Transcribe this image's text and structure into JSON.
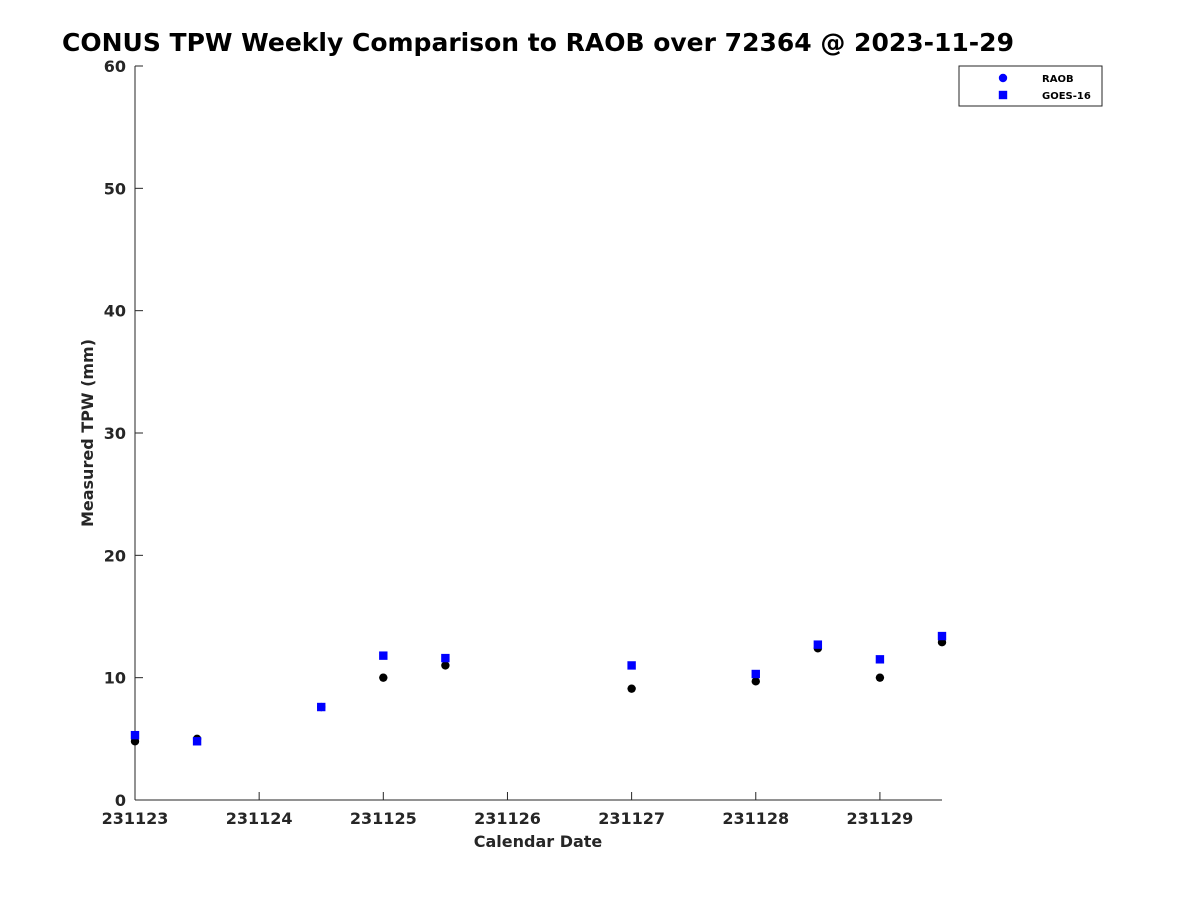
{
  "chart_data": {
    "type": "scatter",
    "title": "CONUS TPW Weekly Comparison to RAOB over 72364 @ 2023-11-29",
    "xlabel": "Calendar Date",
    "ylabel": "Measured TPW (mm)",
    "xlim": [
      "2023-11-23T00:00",
      "2023-11-29T12:00"
    ],
    "ylim": [
      0,
      60
    ],
    "x_ticks": [
      {
        "x": "2023-11-23T00:00",
        "label": "231123"
      },
      {
        "x": "2023-11-24T00:00",
        "label": "231124"
      },
      {
        "x": "2023-11-25T00:00",
        "label": "231125"
      },
      {
        "x": "2023-11-26T00:00",
        "label": "231126"
      },
      {
        "x": "2023-11-27T00:00",
        "label": "231127"
      },
      {
        "x": "2023-11-28T00:00",
        "label": "231128"
      },
      {
        "x": "2023-11-29T00:00",
        "label": "231129"
      }
    ],
    "y_ticks": [
      0,
      10,
      20,
      30,
      40,
      50,
      60
    ],
    "grid": false,
    "legend_position": "top-right",
    "series": [
      {
        "name": "RAOB",
        "marker": "circle",
        "marker_color": "#000000",
        "legend_color": "#0000ff",
        "points": [
          {
            "x": "2023-11-23T00:00",
            "y": 4.8
          },
          {
            "x": "2023-11-23T12:00",
            "y": 5.0
          },
          {
            "x": "2023-11-24T12:00",
            "y": 7.6
          },
          {
            "x": "2023-11-25T00:00",
            "y": 10.0
          },
          {
            "x": "2023-11-25T12:00",
            "y": 11.0
          },
          {
            "x": "2023-11-27T00:00",
            "y": 9.1
          },
          {
            "x": "2023-11-28T00:00",
            "y": 9.7
          },
          {
            "x": "2023-11-28T12:00",
            "y": 12.4
          },
          {
            "x": "2023-11-29T00:00",
            "y": 10.0
          },
          {
            "x": "2023-11-29T12:00",
            "y": 12.9
          }
        ]
      },
      {
        "name": "GOES-16",
        "marker": "square",
        "marker_color": "#0000ff",
        "legend_color": "#0000ff",
        "points": [
          {
            "x": "2023-11-23T00:00",
            "y": 5.3
          },
          {
            "x": "2023-11-23T12:00",
            "y": 4.8
          },
          {
            "x": "2023-11-24T12:00",
            "y": 7.6
          },
          {
            "x": "2023-11-25T00:00",
            "y": 11.8
          },
          {
            "x": "2023-11-25T12:00",
            "y": 11.6
          },
          {
            "x": "2023-11-27T00:00",
            "y": 11.0
          },
          {
            "x": "2023-11-28T00:00",
            "y": 10.3
          },
          {
            "x": "2023-11-28T12:00",
            "y": 12.7
          },
          {
            "x": "2023-11-29T00:00",
            "y": 11.5
          },
          {
            "x": "2023-11-29T12:00",
            "y": 13.4
          }
        ]
      }
    ]
  }
}
